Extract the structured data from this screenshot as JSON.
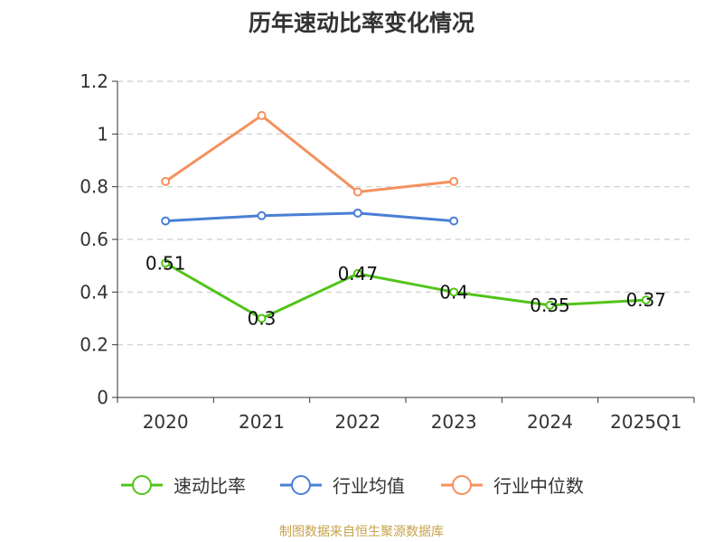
{
  "chart_data": {
    "type": "line",
    "title": "历年速动比率变化情况",
    "categories": [
      "2020",
      "2021",
      "2022",
      "2023",
      "2024",
      "2025Q1"
    ],
    "ylim": [
      0,
      1.2
    ],
    "yticks": [
      "0",
      "0.2",
      "0.4",
      "0.6",
      "0.8",
      "1",
      "1.2"
    ],
    "grid": true,
    "legend_position": "bottom",
    "series": [
      {
        "name": "速动比率",
        "color": "#52c41a",
        "values": [
          0.51,
          0.3,
          0.47,
          0.4,
          0.35,
          0.37
        ],
        "labels": [
          "0.51",
          "0.3",
          "0.47",
          "0.4",
          "0.35",
          "0.37"
        ],
        "show_labels": true
      },
      {
        "name": "行业均值",
        "color": "#4a7fd4",
        "values": [
          0.67,
          0.69,
          0.7,
          0.67,
          null,
          null
        ],
        "show_labels": false
      },
      {
        "name": "行业中位数",
        "color": "#f4915e",
        "values": [
          0.82,
          1.07,
          0.78,
          0.82,
          null,
          null
        ],
        "show_labels": false
      }
    ]
  },
  "source": "制图数据来自恒生聚源数据库"
}
